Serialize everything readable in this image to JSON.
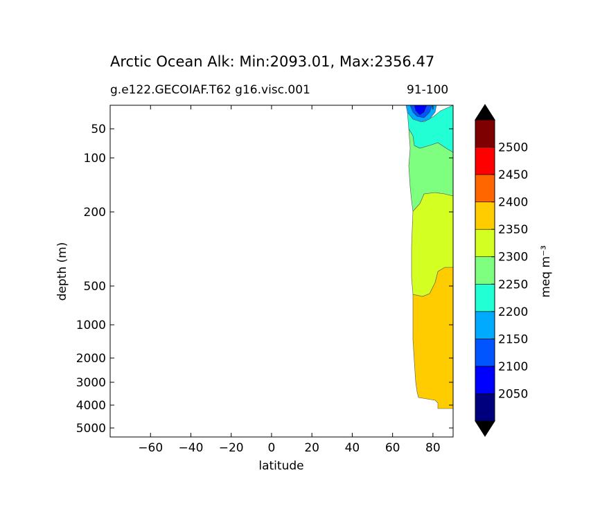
{
  "header": {
    "title": "Arctic Ocean Alk: Min:2093.01, Max:2356.47",
    "subtitle_left": "g.e122.GECOIAF.T62 g16.visc.001",
    "subtitle_right": "91-100"
  },
  "chart_data": {
    "type": "contourf",
    "title": "Arctic Ocean Alk: Min:2093.01, Max:2356.47",
    "xlabel": "latitude",
    "ylabel": "depth (m)",
    "xlim": [
      -80,
      90
    ],
    "x_ticks": [
      -60,
      -40,
      -20,
      0,
      20,
      40,
      60,
      80
    ],
    "x_tick_labels": [
      "−60",
      "−40",
      "−20",
      "0",
      "20",
      "40",
      "60",
      "80"
    ],
    "y_scale": "piecewise depth (log-like)",
    "y_ticks": [
      50,
      100,
      200,
      500,
      1000,
      2000,
      3000,
      4000,
      5000
    ],
    "y_tick_labels": [
      "50",
      "100",
      "200",
      "500",
      "1000",
      "2000",
      "3000",
      "4000",
      "5000"
    ],
    "colorbar": {
      "label": "meq m⁻³",
      "extend": "both",
      "levels": [
        2000,
        2050,
        2100,
        2150,
        2200,
        2250,
        2300,
        2350,
        2400,
        2450,
        2500,
        2550
      ],
      "tick_labels": [
        "2050",
        "2100",
        "2150",
        "2200",
        "2250",
        "2300",
        "2350",
        "2400",
        "2450",
        "2500"
      ],
      "colors": [
        "#00007f",
        "#0000ff",
        "#0055ff",
        "#00aaff",
        "#22ffd4",
        "#7fff7f",
        "#d4ff22",
        "#ffcc00",
        "#ff6600",
        "#ff0000",
        "#7f0000"
      ],
      "under_color": "#000000",
      "over_color": "#000000"
    },
    "regions": [
      {
        "name": "2350-2400",
        "color": "#ffcc00",
        "latitudes": [
          69,
          90
        ],
        "depth_range": [
          350,
          4100
        ]
      },
      {
        "name": "2300-2350",
        "color": "#d4ff22",
        "latitudes": [
          68,
          90
        ],
        "depth_range": [
          150,
          600
        ]
      },
      {
        "name": "2250-2300",
        "color": "#7fff7f",
        "latitudes": [
          67,
          90
        ],
        "depth_range": [
          60,
          200
        ]
      },
      {
        "name": "2200-2250",
        "color": "#22ffd4",
        "latitudes": [
          68,
          90
        ],
        "depth_range": [
          20,
          100
        ]
      },
      {
        "name": "2150-2200",
        "color": "#00aaff",
        "latitudes": [
          70,
          82
        ],
        "depth_range": [
          10,
          30
        ]
      },
      {
        "name": "2100-2150",
        "color": "#0055ff",
        "latitudes": [
          72,
          78
        ],
        "depth_range": [
          10,
          20
        ]
      }
    ],
    "grid": false
  }
}
